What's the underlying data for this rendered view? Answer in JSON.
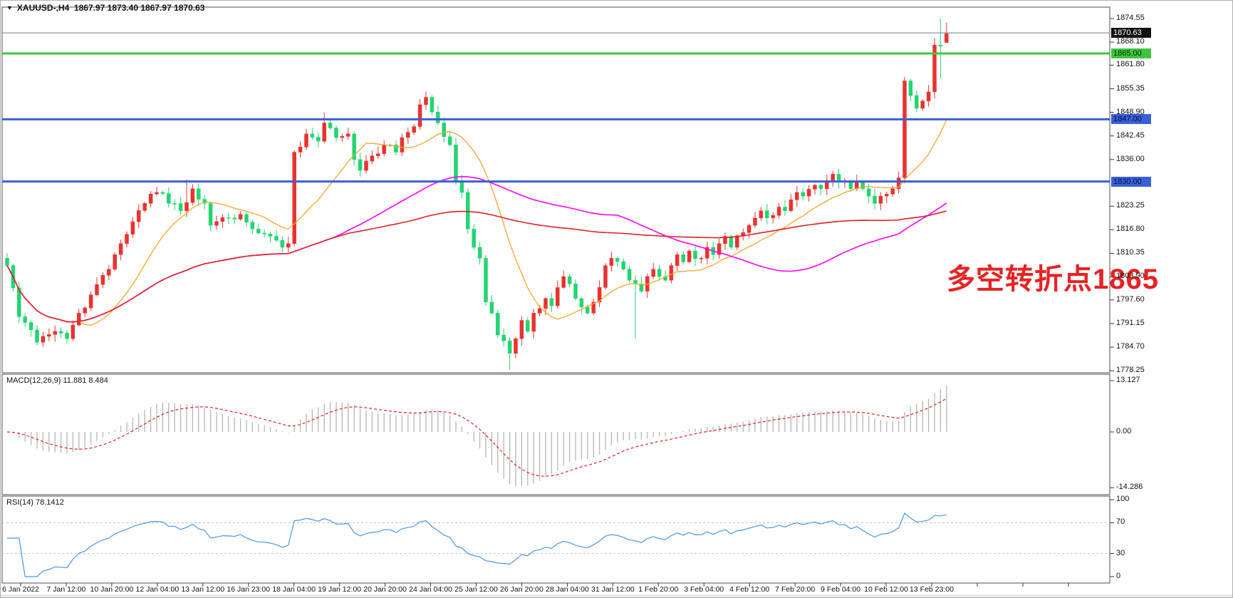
{
  "window": {
    "symbol_title": "XAUUSD-,H4",
    "ohlc_title": "1867.97 1873.40 1867.97 1870.63",
    "dropdown_icon": "▼"
  },
  "annotation": {
    "text": "多空转折点1865",
    "color": "#e82222"
  },
  "panels": {
    "macd": {
      "label": "MACD(12,26,9) 11.881 8.484",
      "axis": [
        {
          "v": 13.127,
          "label": "13.127"
        },
        {
          "v": 0,
          "label": "0.00"
        },
        {
          "v": -14.286,
          "label": "-14.286"
        }
      ]
    },
    "rsi": {
      "label": "RSI(14) 78.1412",
      "axis": [
        {
          "v": 100,
          "label": "100"
        },
        {
          "v": 70,
          "label": "70"
        },
        {
          "v": 30,
          "label": "30"
        },
        {
          "v": 0,
          "label": "0"
        }
      ]
    }
  },
  "price_axis": {
    "ticks": [
      1874.55,
      1868.1,
      1861.8,
      1855.35,
      1848.9,
      1842.45,
      1836.0,
      1823.25,
      1816.8,
      1810.35,
      1803.9,
      1797.6,
      1791.15,
      1784.7,
      1778.25
    ],
    "boxes": [
      {
        "price": 1870.63,
        "label": "1870.63",
        "bg": "#111111",
        "fg": "#ffffff"
      },
      {
        "price": 1865.0,
        "label": "1865.00",
        "bg": "#3fc43f",
        "fg": "#062e06"
      },
      {
        "price": 1847.0,
        "label": "1847.00",
        "bg": "#3a5fd7",
        "fg": "#051137"
      },
      {
        "price": 1830.0,
        "label": "1830.00",
        "bg": "#3a5fd7",
        "fg": "#051137"
      }
    ]
  },
  "time_axis": {
    "labels": [
      "6 Jan 2022",
      "7 Jan 12:00",
      "10 Jan 20:00",
      "12 Jan 04:00",
      "13 Jan 12:00",
      "16 Jan 23:00",
      "18 Jan 04:00",
      "19 Jan 12:00",
      "20 Jan 20:00",
      "24 Jan 04:00",
      "25 Jan 12:00",
      "26 Jan 20:00",
      "28 Jan 04:00",
      "31 Jan 12:00",
      "1 Feb 20:00",
      "3 Feb 04:00",
      "4 Feb 12:00",
      "7 Feb 20:00",
      "9 Feb 04:00",
      "10 Feb 12:00",
      "13 Feb 23:00"
    ]
  },
  "chart_data": {
    "type": "candlestick",
    "symbol": "XAUUSD-",
    "timeframe": "H4",
    "title": "XAUUSD-,H4 1867.97 1873.40 1867.97 1870.63",
    "current_bar": {
      "open": 1867.97,
      "high": 1873.4,
      "low": 1867.97,
      "close": 1870.63
    },
    "ylim": [
      1778.25,
      1874.55
    ],
    "n_candles": 158,
    "colors": {
      "up": "#e8332f",
      "down": "#22d571",
      "macd_hist": "#b5b5b5",
      "macd_signal": "#e02020",
      "rsi_line": "#4696ec",
      "grid_dash": "#c0c0c0"
    },
    "hlines": [
      {
        "price": 1870.63,
        "color": "#8a97a3",
        "width": 1.2,
        "role": "current-price"
      },
      {
        "price": 1865.0,
        "color": "#3fc43f",
        "width": 3,
        "role": "pivot-level"
      },
      {
        "price": 1847.0,
        "color": "#3a5fd7",
        "width": 3,
        "role": "resistance"
      },
      {
        "price": 1830.0,
        "color": "#3a5fd7",
        "width": 3,
        "role": "support"
      }
    ],
    "close_waypoints": [
      [
        0,
        1807
      ],
      [
        2,
        1793
      ],
      [
        5,
        1786
      ],
      [
        8,
        1789
      ],
      [
        10,
        1787
      ],
      [
        12,
        1794
      ],
      [
        14,
        1799
      ],
      [
        17,
        1806
      ],
      [
        19,
        1813
      ],
      [
        21,
        1819
      ],
      [
        23,
        1824
      ],
      [
        25,
        1827
      ],
      [
        27,
        1824
      ],
      [
        29,
        1822
      ],
      [
        31,
        1828
      ],
      [
        33,
        1824
      ],
      [
        34,
        1818
      ],
      [
        37,
        1820
      ],
      [
        39,
        1821
      ],
      [
        41,
        1817
      ],
      [
        44,
        1815
      ],
      [
        46,
        1812
      ],
      [
        47,
        1813
      ],
      [
        48,
        1838
      ],
      [
        50,
        1843
      ],
      [
        52,
        1841
      ],
      [
        53,
        1846
      ],
      [
        55,
        1842
      ],
      [
        57,
        1843
      ],
      [
        58,
        1836
      ],
      [
        59,
        1833
      ],
      [
        61,
        1837
      ],
      [
        63,
        1840
      ],
      [
        65,
        1838
      ],
      [
        66,
        1842
      ],
      [
        68,
        1845
      ],
      [
        69,
        1851
      ],
      [
        70,
        1853
      ],
      [
        71,
        1849
      ],
      [
        72,
        1846
      ],
      [
        74,
        1840
      ],
      [
        75,
        1830
      ],
      [
        76,
        1827
      ],
      [
        77,
        1817
      ],
      [
        78,
        1812
      ],
      [
        79,
        1809
      ],
      [
        80,
        1797
      ],
      [
        81,
        1794
      ],
      [
        82,
        1788
      ],
      [
        84,
        1783
      ],
      [
        85,
        1787
      ],
      [
        86,
        1792
      ],
      [
        87,
        1789
      ],
      [
        88,
        1794
      ],
      [
        90,
        1798
      ],
      [
        91,
        1796
      ],
      [
        92,
        1801
      ],
      [
        93,
        1804
      ],
      [
        94,
        1802
      ],
      [
        95,
        1798
      ],
      [
        97,
        1794
      ],
      [
        98,
        1797
      ],
      [
        99,
        1801
      ],
      [
        100,
        1807
      ],
      [
        101,
        1809
      ],
      [
        103,
        1806
      ],
      [
        104,
        1803
      ],
      [
        105,
        1802
      ],
      [
        106,
        1800
      ],
      [
        107,
        1804
      ],
      [
        108,
        1806
      ],
      [
        110,
        1803
      ],
      [
        111,
        1807
      ],
      [
        112,
        1810
      ],
      [
        113,
        1808
      ],
      [
        114,
        1811
      ],
      [
        116,
        1809
      ],
      [
        117,
        1812
      ],
      [
        118,
        1810
      ],
      [
        119,
        1813
      ],
      [
        120,
        1815
      ],
      [
        121,
        1812
      ],
      [
        123,
        1816
      ],
      [
        124,
        1818
      ],
      [
        125,
        1820
      ],
      [
        126,
        1822
      ],
      [
        127,
        1820
      ],
      [
        129,
        1823
      ],
      [
        130,
        1822
      ],
      [
        131,
        1825
      ],
      [
        132,
        1827
      ],
      [
        133,
        1826
      ],
      [
        135,
        1829
      ],
      [
        136,
        1828
      ],
      [
        137,
        1830
      ],
      [
        138,
        1832
      ],
      [
        139,
        1830
      ],
      [
        141,
        1828
      ],
      [
        142,
        1830
      ],
      [
        143,
        1828
      ],
      [
        144,
        1826
      ],
      [
        145,
        1824
      ],
      [
        146,
        1826
      ],
      [
        148,
        1828
      ],
      [
        149,
        1831
      ],
      [
        150,
        1857.5
      ],
      [
        151,
        1853.5
      ],
      [
        152,
        1850
      ],
      [
        153,
        1852
      ],
      [
        154,
        1854.5
      ],
      [
        155,
        1867.3
      ],
      [
        156,
        1867.0
      ],
      [
        157,
        1870.63
      ]
    ],
    "wick_overrides": {
      "30": {
        "high": 1830.5
      },
      "53": {
        "high": 1848.9
      },
      "70": {
        "high": 1854.6
      },
      "84": {
        "low": 1778.5
      },
      "105": {
        "low": 1787.0
      },
      "150": {
        "high": 1858.6,
        "low": 1829.5
      },
      "156": {
        "high": 1874.5,
        "low": 1858.2
      },
      "157": {
        "open": 1867.97,
        "high": 1873.4,
        "low": 1867.97
      }
    },
    "indicators": {
      "ma_fast": {
        "type": "sma",
        "period": 13,
        "color": "#f4a62a"
      },
      "ma_mid": {
        "type": "sma",
        "period": 55,
        "color": "#ff00ff"
      },
      "ma_slow": {
        "type": "sma",
        "period": 120,
        "color": "#dd2222"
      },
      "macd": {
        "fast": 12,
        "slow": 26,
        "signal": 9,
        "main_value": 11.881,
        "signal_value": 8.484,
        "ylim": [
          -14.286,
          13.127
        ]
      },
      "rsi": {
        "period": 14,
        "value": 78.1412,
        "levels": [
          70,
          30
        ],
        "ylim": [
          0,
          100
        ]
      }
    }
  }
}
